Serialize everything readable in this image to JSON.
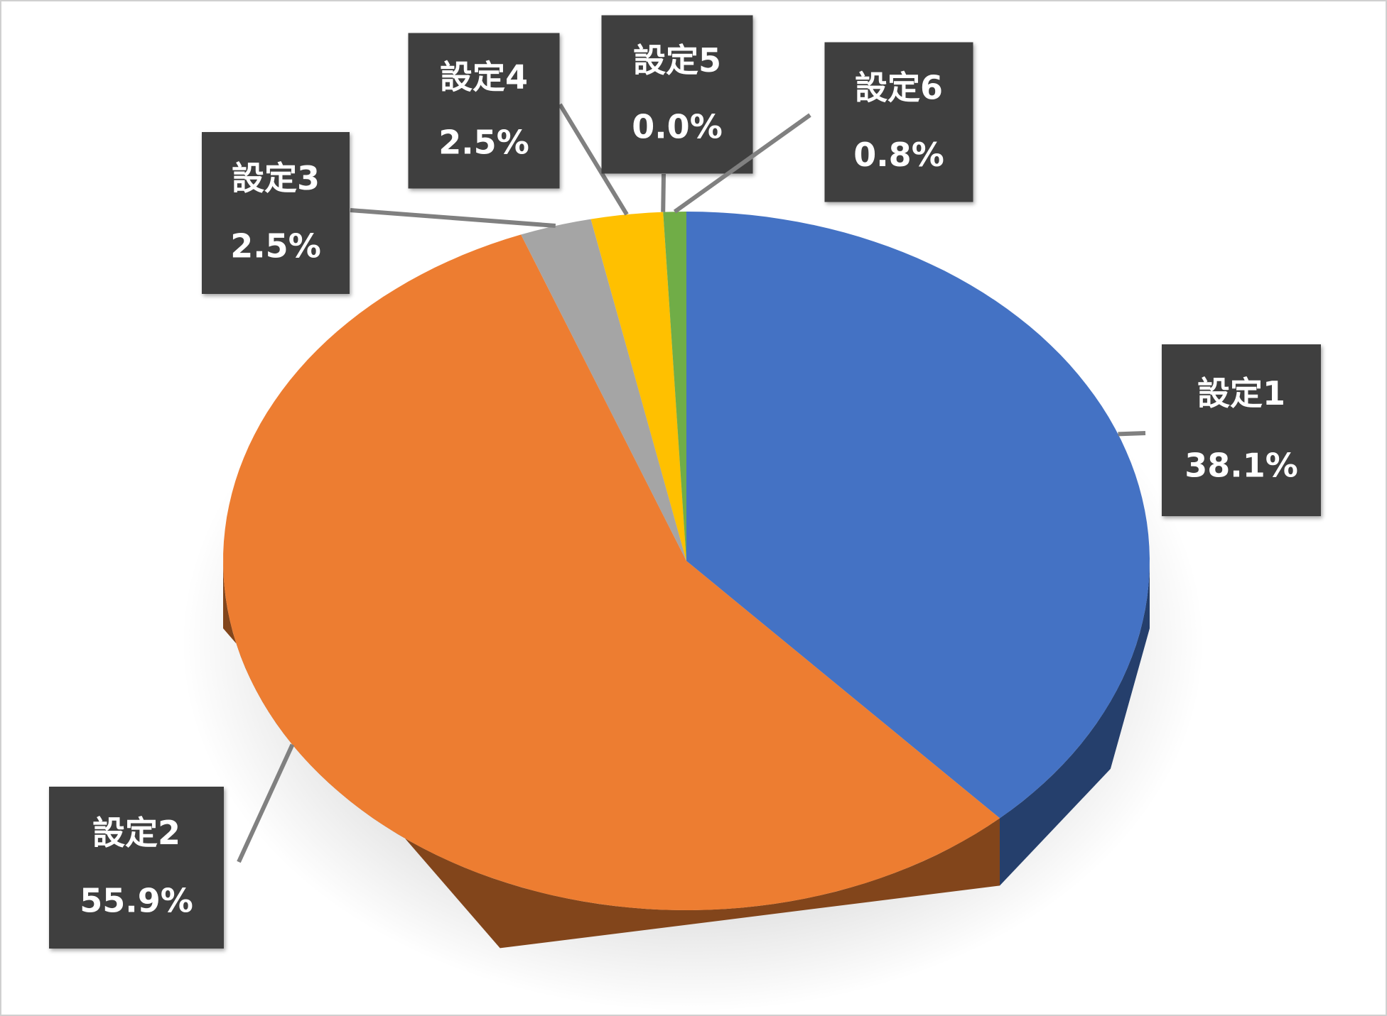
{
  "chart_data": {
    "type": "pie",
    "categories": [
      "設定1",
      "設定2",
      "設定3",
      "設定4",
      "設定5",
      "設定6"
    ],
    "values": [
      38.1,
      55.9,
      2.5,
      2.5,
      0.0,
      0.8
    ],
    "value_labels": [
      "38.1%",
      "55.9%",
      "2.5%",
      "2.5%",
      "0.0%",
      "0.8%"
    ],
    "colors": [
      "#4472c4",
      "#ed7d31",
      "#a5a5a5",
      "#ffc000",
      "#5b9bd5",
      "#70ad47"
    ]
  }
}
